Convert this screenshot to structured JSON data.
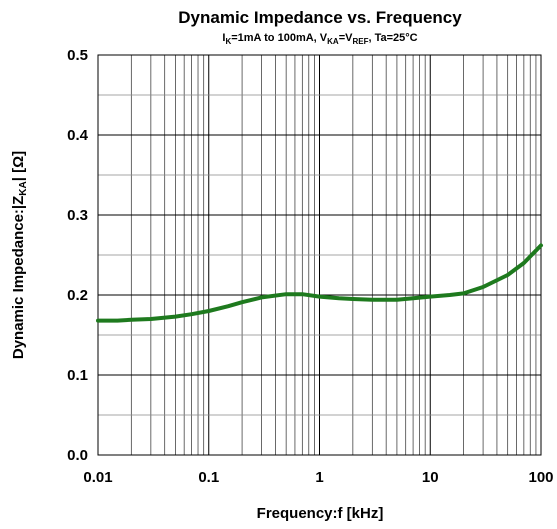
{
  "chart_data": {
    "type": "line",
    "title": "Dynamic Impedance vs. Frequency",
    "subtitle": {
      "p1": "I",
      "s1": "K",
      "p2": "=1mA to 100mA, V",
      "s2": "KA",
      "p3": "=V",
      "s3": "REF",
      "p4": ", Ta=25°C"
    },
    "xlabel": "Frequency:f [kHz]",
    "ylabel": {
      "p1": "Dynamic Impedance:|Z",
      "s1": "KA",
      "p2": "| [Ω]"
    },
    "x_scale": "log",
    "xlim": [
      0.01,
      100
    ],
    "ylim": [
      0,
      0.5
    ],
    "x_ticks": [
      {
        "value": 0.01,
        "label": "0.01"
      },
      {
        "value": 0.1,
        "label": "0.1"
      },
      {
        "value": 1,
        "label": "1"
      },
      {
        "value": 10,
        "label": "10"
      },
      {
        "value": 100,
        "label": "100"
      }
    ],
    "y_ticks": [
      {
        "value": 0,
        "label": "0.0"
      },
      {
        "value": 0.1,
        "label": "0.1"
      },
      {
        "value": 0.2,
        "label": "0.2"
      },
      {
        "value": 0.3,
        "label": "0.3"
      },
      {
        "value": 0.4,
        "label": "0.4"
      },
      {
        "value": 0.5,
        "label": "0.5"
      }
    ],
    "y_minor_step": 0.05,
    "grid": true,
    "series": [
      {
        "color": "#1e7a1e",
        "x": [
          0.01,
          0.015,
          0.02,
          0.03,
          0.05,
          0.07,
          0.1,
          0.15,
          0.2,
          0.3,
          0.5,
          0.7,
          1,
          1.5,
          2,
          3,
          5,
          7,
          10,
          15,
          20,
          30,
          50,
          70,
          100
        ],
        "y": [
          0.168,
          0.168,
          0.169,
          0.17,
          0.173,
          0.176,
          0.18,
          0.186,
          0.191,
          0.197,
          0.201,
          0.201,
          0.198,
          0.196,
          0.195,
          0.194,
          0.194,
          0.196,
          0.198,
          0.2,
          0.202,
          0.21,
          0.225,
          0.24,
          0.262
        ]
      }
    ]
  }
}
